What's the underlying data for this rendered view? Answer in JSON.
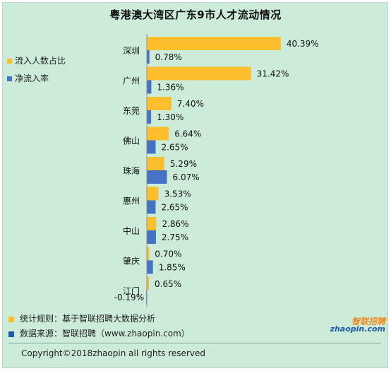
{
  "title": "粤港澳大湾区广东9市人才流动情况",
  "legend": [
    {
      "label": "流入人数占比",
      "color": "#fbbf2e"
    },
    {
      "label": "净流入率",
      "color": "#4472c4"
    }
  ],
  "chart_data": {
    "type": "bar",
    "orientation": "horizontal",
    "categories": [
      "深圳",
      "广州",
      "东莞",
      "佛山",
      "珠海",
      "惠州",
      "中山",
      "肇庆",
      "江门"
    ],
    "series": [
      {
        "name": "流入人数占比",
        "color": "#fbbf2e",
        "values": [
          40.39,
          31.42,
          7.4,
          6.64,
          5.29,
          3.53,
          2.86,
          0.7,
          0.65
        ],
        "labels": [
          "40.39%",
          "31.42%",
          "7.40%",
          "6.64%",
          "5.29%",
          "3.53%",
          "2.86%",
          "0.70%",
          "0.65%"
        ]
      },
      {
        "name": "净流入率",
        "color": "#4472c4",
        "values": [
          0.78,
          1.36,
          1.3,
          2.65,
          6.07,
          2.65,
          2.75,
          1.85,
          -0.19
        ],
        "labels": [
          "0.78%",
          "1.36%",
          "1.30%",
          "2.65%",
          "6.07%",
          "2.65%",
          "2.75%",
          "1.85%",
          "-0.19%"
        ]
      }
    ],
    "unit": "%",
    "grid": false,
    "legend_placement": "top-left"
  },
  "notes": [
    {
      "text": "统计规则：基于智联招聘大数据分析",
      "color": "#fbbf2e"
    },
    {
      "text": "数据来源：智联招聘（www.zhaopin.com）",
      "color": "#1f5aa8"
    }
  ],
  "copyright": "Copyright©2018zhaopin all rights reserved",
  "logo": {
    "cn": "智联招聘",
    "en": "zhaopin.com"
  }
}
